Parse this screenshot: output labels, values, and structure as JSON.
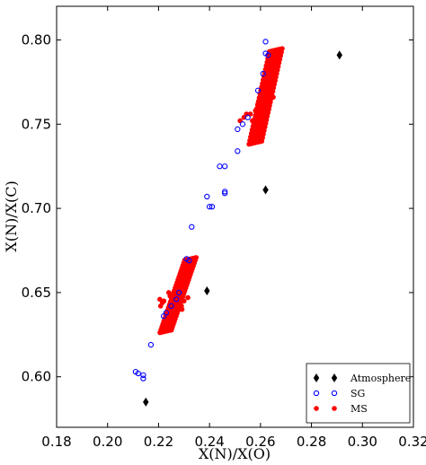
{
  "chart_data": {
    "type": "scatter",
    "xlabel": "X(N)/X(O)",
    "ylabel": "X(N)/X(C)",
    "xlim": [
      0.18,
      0.32
    ],
    "ylim": [
      0.57,
      0.82
    ],
    "x_ticks": [
      "0.18",
      "0.20",
      "0.22",
      "0.24",
      "0.26",
      "0.28",
      "0.30",
      "0.32"
    ],
    "y_ticks": [
      "0.60",
      "0.65",
      "0.70",
      "0.75",
      "0.80"
    ],
    "legend_position": "bottom-right",
    "grid": false,
    "series": [
      {
        "name": "Atmosphere",
        "marker": "diamond",
        "color": "#000000",
        "points": [
          [
            0.215,
            0.585
          ],
          [
            0.239,
            0.651
          ],
          [
            0.262,
            0.711
          ],
          [
            0.291,
            0.791
          ]
        ]
      },
      {
        "name": "SG",
        "marker": "open-circle",
        "color": "#0000ff",
        "points": [
          [
            0.211,
            0.603
          ],
          [
            0.212,
            0.602
          ],
          [
            0.214,
            0.601
          ],
          [
            0.214,
            0.599
          ],
          [
            0.217,
            0.619
          ],
          [
            0.222,
            0.636
          ],
          [
            0.223,
            0.638
          ],
          [
            0.225,
            0.642
          ],
          [
            0.227,
            0.646
          ],
          [
            0.228,
            0.65
          ],
          [
            0.231,
            0.67
          ],
          [
            0.232,
            0.669
          ],
          [
            0.233,
            0.689
          ],
          [
            0.239,
            0.707
          ],
          [
            0.24,
            0.701
          ],
          [
            0.241,
            0.701
          ],
          [
            0.244,
            0.725
          ],
          [
            0.246,
            0.71
          ],
          [
            0.246,
            0.709
          ],
          [
            0.246,
            0.725
          ],
          [
            0.251,
            0.734
          ],
          [
            0.251,
            0.747
          ],
          [
            0.253,
            0.75
          ],
          [
            0.255,
            0.754
          ],
          [
            0.259,
            0.77
          ],
          [
            0.261,
            0.78
          ],
          [
            0.262,
            0.792
          ],
          [
            0.263,
            0.791
          ],
          [
            0.262,
            0.799
          ]
        ]
      },
      {
        "name": "MS",
        "marker": "filled-circle",
        "color": "#ff0000",
        "bands": [
          {
            "x_start": 0.2228,
            "y_start": 0.627,
            "x_end": 0.2325,
            "y_end": 0.67,
            "width": 0.0045
          },
          {
            "x_start": 0.258,
            "y_start": 0.739,
            "x_end": 0.266,
            "y_end": 0.794,
            "width": 0.005
          }
        ],
        "points": [
          [
            0.2205,
            0.646
          ],
          [
            0.2208,
            0.642
          ],
          [
            0.2215,
            0.644
          ],
          [
            0.2221,
            0.645
          ],
          [
            0.224,
            0.65
          ],
          [
            0.2245,
            0.648
          ],
          [
            0.226,
            0.639
          ],
          [
            0.2275,
            0.644
          ],
          [
            0.229,
            0.642
          ],
          [
            0.23,
            0.645
          ],
          [
            0.2292,
            0.64
          ],
          [
            0.2315,
            0.647
          ],
          [
            0.252,
            0.752
          ],
          [
            0.2535,
            0.754
          ],
          [
            0.2545,
            0.756
          ],
          [
            0.256,
            0.756
          ],
          [
            0.2568,
            0.752
          ],
          [
            0.258,
            0.758
          ],
          [
            0.259,
            0.762
          ],
          [
            0.2605,
            0.766
          ],
          [
            0.2612,
            0.762
          ],
          [
            0.262,
            0.761
          ],
          [
            0.263,
            0.765
          ],
          [
            0.264,
            0.767
          ],
          [
            0.265,
            0.766
          ],
          [
            0.2605,
            0.757
          ],
          [
            0.2615,
            0.756
          ]
        ]
      }
    ]
  }
}
